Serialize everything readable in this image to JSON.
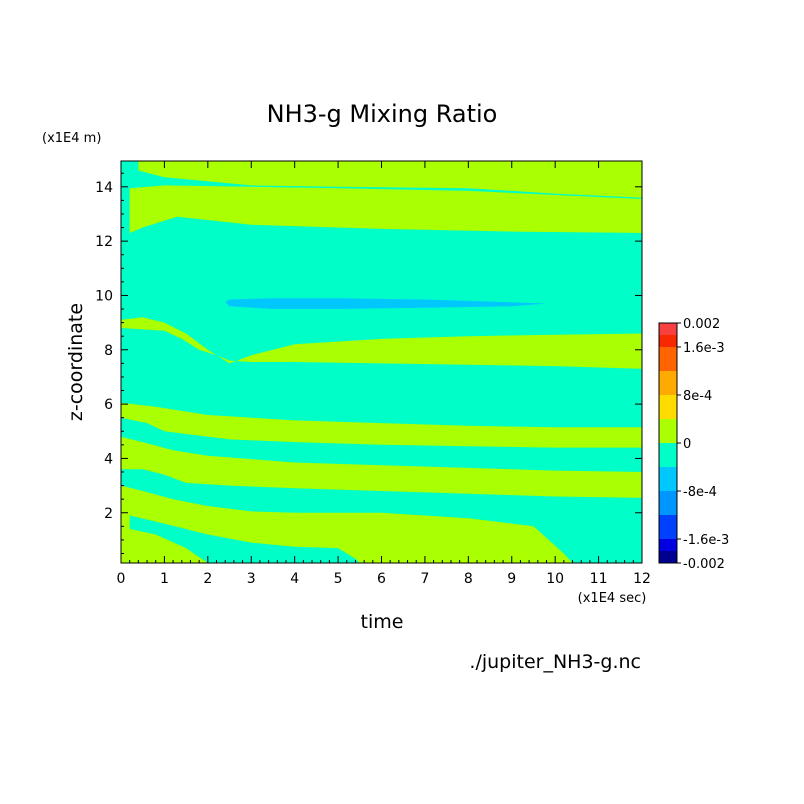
{
  "chart_data": {
    "type": "heatmap",
    "title": "NH3-g Mixing Ratio",
    "xlabel": "time",
    "ylabel": "z-coordinate",
    "x_unit": "(x1E4 sec)",
    "y_unit": "(x1E4 m)",
    "xlim": [
      0,
      12
    ],
    "ylim": [
      0.15,
      14.95
    ],
    "x_ticks": [
      "0",
      "1",
      "2",
      "3",
      "4",
      "5",
      "6",
      "7",
      "8",
      "9",
      "10",
      "11",
      "12"
    ],
    "y_ticks": [
      "2",
      "4",
      "6",
      "8",
      "10",
      "12",
      "14"
    ],
    "grid": false,
    "colorbar": {
      "range": [
        -0.002,
        0.002
      ],
      "labels": [
        "0.002",
        "1.6e-3",
        "8e-4",
        "0",
        "-8e-4",
        "-1.6e-3",
        "-0.002"
      ],
      "label_values": [
        0.002,
        0.0016,
        0.0008,
        0,
        -0.0008,
        -0.0016,
        -0.002
      ],
      "levels": [
        {
          "from": 0.0018,
          "to": 0.002,
          "color": "#f84040"
        },
        {
          "from": 0.0016,
          "to": 0.0018,
          "color": "#f82800"
        },
        {
          "from": 0.0012,
          "to": 0.0016,
          "color": "#ff6400"
        },
        {
          "from": 0.0008,
          "to": 0.0012,
          "color": "#ffaa00"
        },
        {
          "from": 0.0004,
          "to": 0.0008,
          "color": "#ffdc00"
        },
        {
          "from": 0,
          "to": 0.0004,
          "color": "#aaff00"
        },
        {
          "from": -0.0004,
          "to": 0,
          "color": "#00ffc8"
        },
        {
          "from": -0.0008,
          "to": -0.0004,
          "color": "#00c8ff"
        },
        {
          "from": -0.0012,
          "to": -0.0008,
          "color": "#0096ff"
        },
        {
          "from": -0.0016,
          "to": -0.0012,
          "color": "#0040ff"
        },
        {
          "from": -0.0018,
          "to": -0.0016,
          "color": "#0000e0"
        },
        {
          "from": -0.002,
          "to": -0.0018,
          "color": "#000090"
        }
      ]
    },
    "background_color": "#00ffc8",
    "regions": [
      {
        "level": "0 to 4e-4",
        "color": "#aaff00",
        "points": [
          [
            0.4,
            14.95
          ],
          [
            12,
            14.95
          ],
          [
            12,
            13.6
          ],
          [
            10,
            13.75
          ],
          [
            8,
            13.95
          ],
          [
            5,
            14.0
          ],
          [
            3,
            14.05
          ],
          [
            1,
            14.35
          ],
          [
            0.4,
            14.6
          ]
        ]
      },
      {
        "level": "0 to 4e-4",
        "color": "#aaff00",
        "points": [
          [
            0.2,
            13.95
          ],
          [
            1,
            14.05
          ],
          [
            3,
            14.0
          ],
          [
            5,
            13.95
          ],
          [
            8,
            13.85
          ],
          [
            12,
            13.55
          ],
          [
            12,
            12.3
          ],
          [
            9,
            12.35
          ],
          [
            6,
            12.45
          ],
          [
            3,
            12.6
          ],
          [
            1.3,
            12.9
          ],
          [
            0.5,
            12.5
          ],
          [
            0.2,
            12.3
          ]
        ]
      },
      {
        "level": "0 to 4e-4",
        "color": "#aaff00",
        "points": [
          [
            0,
            9.1
          ],
          [
            0.5,
            9.2
          ],
          [
            1,
            9.0
          ],
          [
            1.5,
            8.6
          ],
          [
            2,
            8.0
          ],
          [
            2.5,
            7.5
          ],
          [
            3,
            7.8
          ],
          [
            4,
            8.2
          ],
          [
            6,
            8.4
          ],
          [
            8,
            8.5
          ],
          [
            10,
            8.55
          ],
          [
            12,
            8.6
          ],
          [
            12,
            7.3
          ],
          [
            10,
            7.4
          ],
          [
            8,
            7.45
          ],
          [
            6,
            7.5
          ],
          [
            4,
            7.55
          ],
          [
            3,
            7.55
          ],
          [
            2.5,
            7.6
          ],
          [
            2.2,
            7.8
          ],
          [
            1.8,
            8.0
          ],
          [
            1.4,
            8.4
          ],
          [
            1,
            8.7
          ],
          [
            0.5,
            8.75
          ],
          [
            0,
            8.8
          ]
        ]
      },
      {
        "level": "0 to 4e-4",
        "color": "#aaff00",
        "points": [
          [
            0,
            6.05
          ],
          [
            0.8,
            5.9
          ],
          [
            2,
            5.6
          ],
          [
            4,
            5.4
          ],
          [
            6,
            5.3
          ],
          [
            8,
            5.2
          ],
          [
            10,
            5.15
          ],
          [
            12,
            5.15
          ],
          [
            12,
            4.4
          ],
          [
            10,
            4.4
          ],
          [
            8,
            4.45
          ],
          [
            6,
            4.5
          ],
          [
            4,
            4.6
          ],
          [
            2.5,
            4.7
          ],
          [
            1.5,
            4.9
          ],
          [
            1,
            5.0
          ],
          [
            0.6,
            5.3
          ],
          [
            0,
            5.5
          ]
        ]
      },
      {
        "level": "0 to 4e-4",
        "color": "#aaff00",
        "points": [
          [
            0,
            4.8
          ],
          [
            0.5,
            4.6
          ],
          [
            1.2,
            4.3
          ],
          [
            2,
            4.1
          ],
          [
            4,
            3.85
          ],
          [
            6,
            3.75
          ],
          [
            8,
            3.65
          ],
          [
            10,
            3.55
          ],
          [
            12,
            3.5
          ],
          [
            12,
            2.55
          ],
          [
            10,
            2.6
          ],
          [
            8,
            2.7
          ],
          [
            6,
            2.8
          ],
          [
            4,
            2.9
          ],
          [
            2.5,
            3.0
          ],
          [
            1.5,
            3.1
          ],
          [
            1,
            3.4
          ],
          [
            0.5,
            3.6
          ],
          [
            0,
            3.6
          ]
        ]
      },
      {
        "level": "0 to 4e-4",
        "color": "#aaff00",
        "points": [
          [
            0,
            3.0
          ],
          [
            0.5,
            2.8
          ],
          [
            1.2,
            2.5
          ],
          [
            2,
            2.25
          ],
          [
            3,
            2.05
          ],
          [
            4,
            2.0
          ],
          [
            6,
            2.0
          ],
          [
            8,
            1.8
          ],
          [
            9.5,
            1.5
          ],
          [
            10.2,
            0.5
          ],
          [
            10.4,
            0.15
          ],
          [
            0,
            0.15
          ]
        ]
      },
      {
        "level": "-4e-4 to 0",
        "color": "#00ffc8",
        "points": [
          [
            0.2,
            1.9
          ],
          [
            1,
            1.6
          ],
          [
            2,
            1.2
          ],
          [
            3,
            0.9
          ],
          [
            4,
            0.75
          ],
          [
            5,
            0.7
          ],
          [
            5.4,
            0.3
          ],
          [
            5.5,
            0.15
          ],
          [
            2,
            0.15
          ],
          [
            1.5,
            0.7
          ],
          [
            0.8,
            1.2
          ],
          [
            0.2,
            1.4
          ]
        ]
      },
      {
        "level": "-8e-4 to -4e-4",
        "color": "#00c8ff",
        "points": [
          [
            2.5,
            9.85
          ],
          [
            3.5,
            9.9
          ],
          [
            5,
            9.9
          ],
          [
            7,
            9.85
          ],
          [
            9,
            9.75
          ],
          [
            9.8,
            9.7
          ],
          [
            9,
            9.6
          ],
          [
            7,
            9.55
          ],
          [
            5,
            9.5
          ],
          [
            3.5,
            9.5
          ],
          [
            2.5,
            9.6
          ],
          [
            2.4,
            9.75
          ]
        ]
      }
    ]
  },
  "source_file": "./jupiter_NH3-g.nc"
}
